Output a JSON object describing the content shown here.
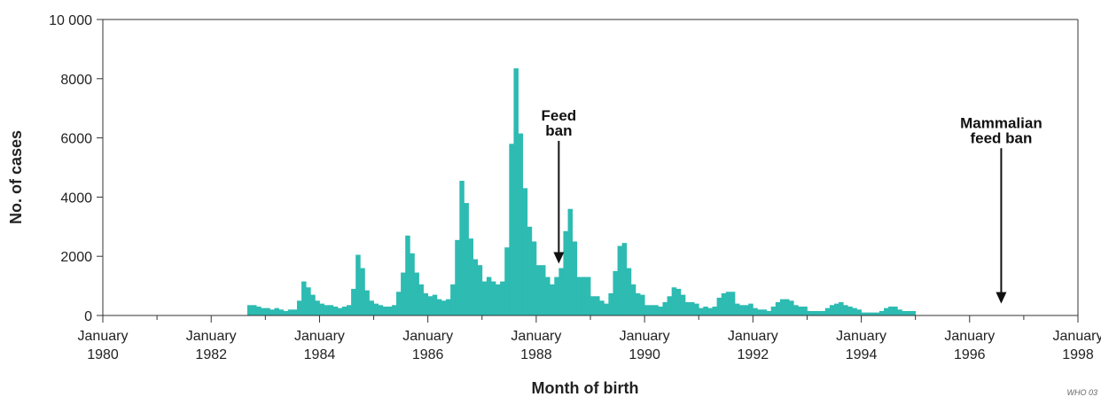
{
  "chart_data": {
    "type": "bar",
    "xlabel": "Month of birth",
    "ylabel": "No. of cases",
    "credit": "WHO 03",
    "ylim": [
      0,
      10000
    ],
    "yticks": [
      {
        "value": 0,
        "label": "0"
      },
      {
        "value": 2000,
        "label": "2000"
      },
      {
        "value": 4000,
        "label": "4000"
      },
      {
        "value": 6000,
        "label": "6000"
      },
      {
        "value": 8000,
        "label": "8000"
      },
      {
        "value": 10000,
        "label": "10 000"
      }
    ],
    "xlim": [
      "1980-01",
      "1998-01"
    ],
    "xticks_major": [
      {
        "date": "1980-01",
        "month": "January",
        "year": "1980"
      },
      {
        "date": "1982-01",
        "month": "January",
        "year": "1982"
      },
      {
        "date": "1984-01",
        "month": "January",
        "year": "1984"
      },
      {
        "date": "1986-01",
        "month": "January",
        "year": "1986"
      },
      {
        "date": "1988-01",
        "month": "January",
        "year": "1988"
      },
      {
        "date": "1990-01",
        "month": "January",
        "year": "1990"
      },
      {
        "date": "1992-01",
        "month": "January",
        "year": "1992"
      },
      {
        "date": "1994-01",
        "month": "January",
        "year": "1994"
      },
      {
        "date": "1996-01",
        "month": "January",
        "year": "1996"
      },
      {
        "date": "1998-01",
        "month": "January",
        "year": "1998"
      }
    ],
    "xticks_minor": [
      "1981-01",
      "1983-01",
      "1985-01",
      "1987-01",
      "1989-01",
      "1991-01",
      "1993-01",
      "1995-01",
      "1997-01"
    ],
    "bar_color": "#2dbbb2",
    "series": [
      {
        "start_month": "1982-09",
        "values": [
          350,
          350,
          300,
          250,
          250,
          200,
          250,
          200,
          150,
          200,
          200,
          500,
          1150,
          950,
          700,
          500,
          400,
          350,
          350,
          300,
          250,
          300,
          350,
          900,
          2050,
          1600,
          850,
          500,
          400,
          350,
          300,
          300,
          350,
          800,
          1450,
          2700,
          2100,
          1450,
          1050,
          750,
          650,
          700,
          550,
          500,
          550,
          1050,
          2550,
          4550,
          3800,
          2600,
          1900,
          1700,
          1150,
          1300,
          1150,
          1050,
          1150,
          2300,
          5800,
          8350,
          6150,
          4300,
          3000,
          2500,
          1700,
          1700,
          1300,
          1050,
          1300,
          1600,
          2850,
          3600,
          2500,
          1300,
          1300,
          1300,
          650,
          650,
          500,
          400,
          750,
          1500,
          2350,
          2450,
          1600,
          1050,
          750,
          700,
          350,
          350,
          350,
          300,
          450,
          650,
          950,
          900,
          700,
          450,
          450,
          400,
          250,
          300,
          250,
          300,
          600,
          750,
          800,
          800,
          400,
          350,
          350,
          400,
          250,
          200,
          200,
          150,
          300,
          450,
          550,
          550,
          500,
          350,
          300,
          300,
          150,
          150,
          150,
          150,
          250,
          350,
          400,
          450,
          350,
          300,
          250,
          200,
          100,
          100,
          100,
          100,
          150,
          250,
          300,
          300,
          200,
          150,
          150,
          150
        ]
      }
    ],
    "annotations": [
      {
        "lines": [
          "Feed",
          "ban"
        ],
        "date": "1988-06",
        "arrow_top": 5900,
        "arrow_bottom": 1750
      },
      {
        "lines": [
          "Mammalian",
          "feed ban"
        ],
        "date": "1996-08",
        "arrow_top": 5650,
        "arrow_bottom": 400
      }
    ]
  }
}
